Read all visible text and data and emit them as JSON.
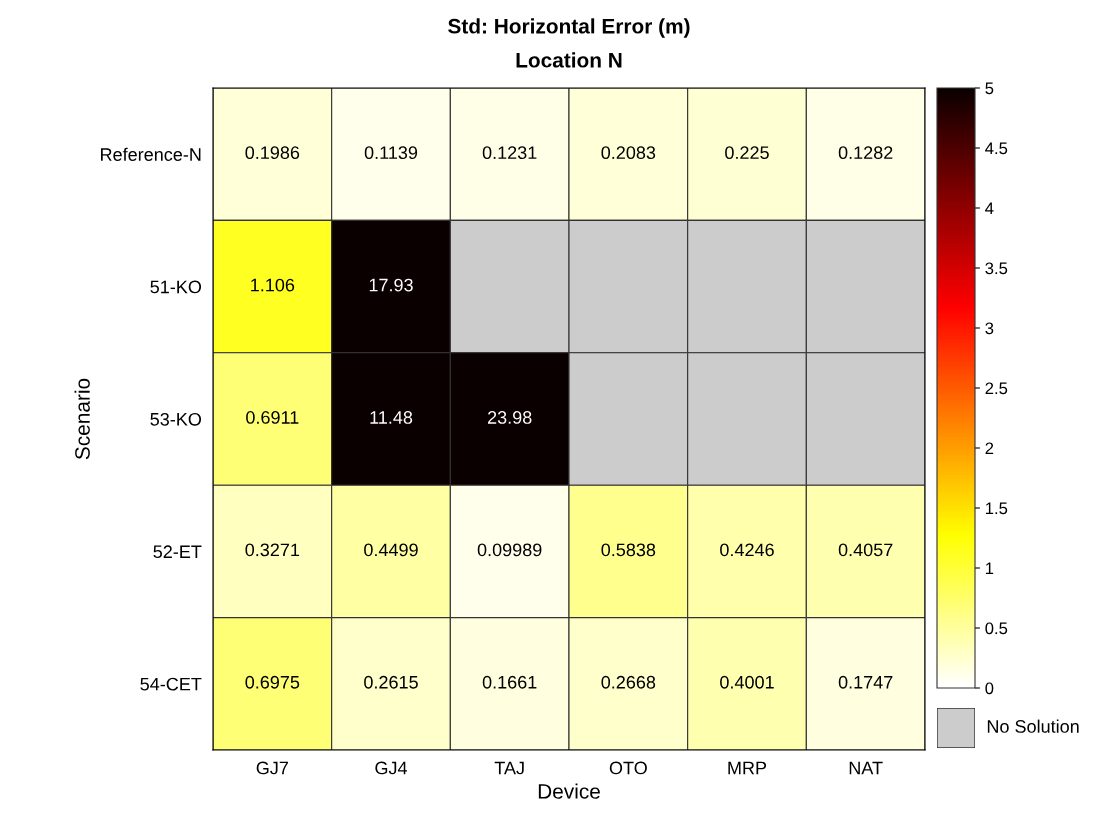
{
  "chart_data": {
    "type": "heatmap",
    "title": "Std: Horizontal Error (m)",
    "subtitle": "Location N",
    "xlabel": "Device",
    "ylabel": "Scenario",
    "categories": [
      "GJ7",
      "GJ4",
      "TAJ",
      "OTO",
      "MRP",
      "NAT"
    ],
    "y_categories": [
      "Reference-N",
      "51-KO",
      "53-KO",
      "52-ET",
      "54-CET"
    ],
    "cells": [
      [
        0.1986,
        0.1139,
        0.1231,
        0.2083,
        0.225,
        0.1282
      ],
      [
        1.106,
        17.93,
        null,
        null,
        null,
        null
      ],
      [
        0.6911,
        11.48,
        23.98,
        null,
        null,
        null
      ],
      [
        0.3271,
        0.4499,
        0.09989,
        0.5838,
        0.4246,
        0.4057
      ],
      [
        0.6975,
        0.2615,
        0.1661,
        0.2668,
        0.4001,
        0.1747
      ]
    ],
    "data_labels": true,
    "clim": [
      0,
      5
    ],
    "cticks": [
      0,
      0.5,
      1,
      1.5,
      2,
      2.5,
      3,
      3.5,
      4,
      4.5,
      5
    ],
    "annotations": [
      "No Solution"
    ]
  }
}
